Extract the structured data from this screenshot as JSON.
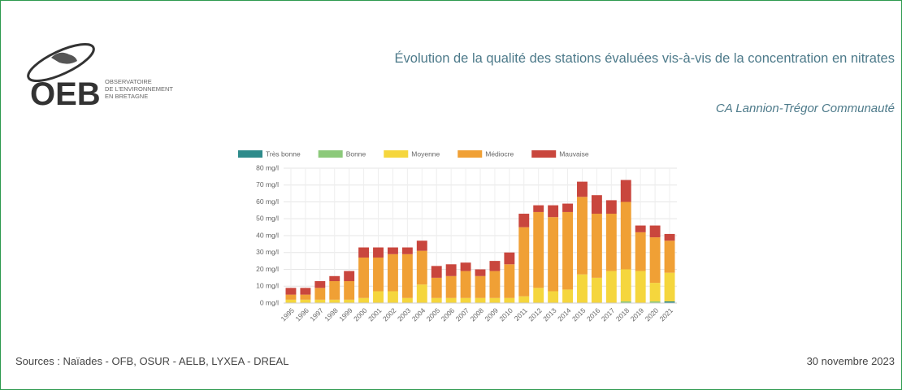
{
  "header": {
    "logo": "OEB",
    "logo_lines": [
      "OBSERVATOIRE",
      "DE L'ENVIRONNEMENT",
      "EN BRETAGNE"
    ]
  },
  "chart_data": {
    "type": "bar",
    "stacked": true,
    "title": "Évolution de la qualité des stations évaluées vis-à-vis de la concentration en nitrates",
    "subtitle": "CA Lannion-Trégor Communauté",
    "categories": [
      "1995",
      "1996",
      "1997",
      "1998",
      "1999",
      "2000",
      "2001",
      "2002",
      "2003",
      "2004",
      "2005",
      "2006",
      "2007",
      "2008",
      "2009",
      "2010",
      "2011",
      "2012",
      "2013",
      "2014",
      "2015",
      "2016",
      "2017",
      "2018",
      "2019",
      "2020",
      "2021"
    ],
    "series": [
      {
        "name": "Très bonne",
        "color": "#2e8b8b",
        "values": [
          0,
          0,
          0,
          0,
          0,
          0,
          0,
          0,
          0,
          0,
          0,
          0,
          0,
          0,
          0,
          0,
          0,
          0,
          0,
          0,
          0,
          0,
          0,
          0,
          0,
          0,
          1
        ]
      },
      {
        "name": "Bonne",
        "color": "#8cc97a",
        "values": [
          0,
          0,
          0,
          0,
          0,
          0,
          0,
          0,
          0,
          0,
          0,
          0,
          0,
          0,
          0,
          0,
          0,
          0,
          0,
          0,
          0,
          0,
          0,
          1,
          0,
          1,
          0
        ]
      },
      {
        "name": "Moyenne",
        "color": "#f5d63d",
        "values": [
          2,
          2,
          2,
          2,
          2,
          3,
          7,
          7,
          3,
          11,
          3,
          3,
          3,
          3,
          3,
          3,
          4,
          9,
          7,
          8,
          17,
          15,
          19,
          19,
          19,
          11,
          17
        ]
      },
      {
        "name": "Médiocre",
        "color": "#f0a035",
        "values": [
          3,
          3,
          7,
          11,
          11,
          24,
          20,
          22,
          26,
          20,
          12,
          13,
          16,
          13,
          16,
          20,
          41,
          45,
          44,
          46,
          46,
          38,
          34,
          40,
          23,
          27,
          19
        ]
      },
      {
        "name": "Mauvaise",
        "color": "#c9463d",
        "values": [
          4,
          4,
          4,
          3,
          6,
          6,
          6,
          4,
          4,
          6,
          7,
          7,
          5,
          4,
          6,
          7,
          8,
          4,
          7,
          5,
          9,
          11,
          8,
          13,
          4,
          7,
          4
        ]
      }
    ],
    "ylim": [
      0,
      80
    ],
    "yticks": [
      {
        "value": 0,
        "label": "0 mg/l"
      },
      {
        "value": 10,
        "label": "10 mg/l"
      },
      {
        "value": 20,
        "label": "20 mg/l"
      },
      {
        "value": 30,
        "label": "30 mg/l"
      },
      {
        "value": 40,
        "label": "40 mg/l"
      },
      {
        "value": 50,
        "label": "50 mg/l"
      },
      {
        "value": 60,
        "label": "60 mg/l"
      },
      {
        "value": 70,
        "label": "70 mg/l"
      },
      {
        "value": 80,
        "label": "80 mg/l"
      }
    ],
    "grid": true,
    "legend": "top"
  },
  "footer": {
    "source": "Sources : Naïades - OFB, OSUR - AELB, LYXEA - DREAL",
    "date": "30 novembre 2023"
  }
}
